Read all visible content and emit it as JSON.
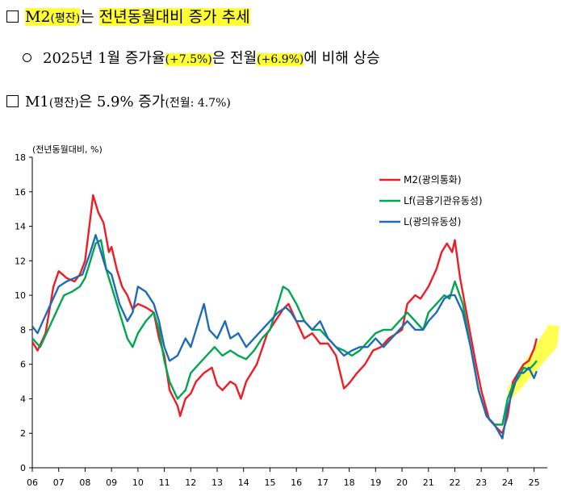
{
  "headline": {
    "title_part1": "M2",
    "title_part2": "(평잔)",
    "title_part3": "는 ",
    "title_part4": "전년동월대비 증가 추세"
  },
  "bullet": {
    "text1": "2025년 1월 증가율",
    "value1": "(+7.5%)",
    "text2": "은 전월",
    "value2": "(+6.9%)",
    "text3": "에 비해 상승"
  },
  "m1_line": {
    "text1": "M1",
    "text2": "(평잔)",
    "text3": "은 5.9% 증가",
    "text4": "(전월: 4.7%)"
  },
  "colors": {
    "m2": "#ee1c25",
    "lf": "#00a650",
    "l": "#1f6bb5",
    "highlight": "#ffff33"
  },
  "chart_data": {
    "type": "line",
    "ylabel": "(전년동월대비, %)",
    "ylim": [
      0,
      18
    ],
    "yticks": [
      "0",
      "2",
      "4",
      "6",
      "8",
      "10",
      "12",
      "14",
      "16",
      "18"
    ],
    "xlim": [
      2006.0,
      2025.5
    ],
    "xticks": [
      "06",
      "07",
      "08",
      "09",
      "10",
      "11",
      "12",
      "13",
      "14",
      "15",
      "16",
      "17",
      "18",
      "19",
      "20",
      "21",
      "22",
      "23",
      "24",
      "25"
    ],
    "legend_position": "top-right",
    "series": [
      {
        "name": "M2(광의통화)",
        "color": "#ee1c25",
        "points": [
          [
            2006.0,
            7.3
          ],
          [
            2006.2,
            6.8
          ],
          [
            2006.5,
            7.8
          ],
          [
            2006.8,
            10.5
          ],
          [
            2007.0,
            11.4
          ],
          [
            2007.3,
            11.0
          ],
          [
            2007.6,
            10.8
          ],
          [
            2007.8,
            11.2
          ],
          [
            2008.0,
            12.0
          ],
          [
            2008.2,
            14.5
          ],
          [
            2008.3,
            15.8
          ],
          [
            2008.5,
            14.8
          ],
          [
            2008.7,
            14.2
          ],
          [
            2008.9,
            12.5
          ],
          [
            2009.0,
            12.8
          ],
          [
            2009.2,
            11.5
          ],
          [
            2009.4,
            10.5
          ],
          [
            2009.6,
            10.0
          ],
          [
            2009.8,
            9.2
          ],
          [
            2010.0,
            9.5
          ],
          [
            2010.3,
            9.3
          ],
          [
            2010.6,
            9.0
          ],
          [
            2010.8,
            7.5
          ],
          [
            2011.0,
            6.5
          ],
          [
            2011.2,
            4.5
          ],
          [
            2011.5,
            3.6
          ],
          [
            2011.6,
            3.0
          ],
          [
            2011.8,
            4.0
          ],
          [
            2012.0,
            4.3
          ],
          [
            2012.2,
            5.0
          ],
          [
            2012.5,
            5.5
          ],
          [
            2012.8,
            5.8
          ],
          [
            2013.0,
            4.8
          ],
          [
            2013.2,
            4.5
          ],
          [
            2013.5,
            5.0
          ],
          [
            2013.7,
            4.8
          ],
          [
            2013.9,
            4.0
          ],
          [
            2014.1,
            5.0
          ],
          [
            2014.5,
            6.0
          ],
          [
            2014.9,
            7.8
          ],
          [
            2015.2,
            8.5
          ],
          [
            2015.5,
            9.2
          ],
          [
            2015.7,
            9.5
          ],
          [
            2016.0,
            8.5
          ],
          [
            2016.3,
            7.5
          ],
          [
            2016.6,
            7.8
          ],
          [
            2016.9,
            7.2
          ],
          [
            2017.2,
            7.2
          ],
          [
            2017.5,
            6.5
          ],
          [
            2017.8,
            4.6
          ],
          [
            2018.0,
            4.9
          ],
          [
            2018.3,
            5.5
          ],
          [
            2018.6,
            6.0
          ],
          [
            2018.9,
            6.8
          ],
          [
            2019.2,
            7.0
          ],
          [
            2019.5,
            7.5
          ],
          [
            2019.8,
            7.8
          ],
          [
            2020.0,
            8.0
          ],
          [
            2020.2,
            9.5
          ],
          [
            2020.5,
            10.0
          ],
          [
            2020.7,
            9.8
          ],
          [
            2021.0,
            10.5
          ],
          [
            2021.3,
            11.5
          ],
          [
            2021.5,
            12.5
          ],
          [
            2021.7,
            13.0
          ],
          [
            2021.9,
            12.5
          ],
          [
            2022.0,
            13.2
          ],
          [
            2022.2,
            11.0
          ],
          [
            2022.5,
            8.5
          ],
          [
            2022.8,
            6.0
          ],
          [
            2023.0,
            4.5
          ],
          [
            2023.3,
            2.8
          ],
          [
            2023.6,
            2.3
          ],
          [
            2023.8,
            2.0
          ],
          [
            2024.0,
            3.0
          ],
          [
            2024.2,
            5.0
          ],
          [
            2024.4,
            5.5
          ],
          [
            2024.6,
            6.0
          ],
          [
            2024.8,
            6.2
          ],
          [
            2025.0,
            6.9
          ],
          [
            2025.1,
            7.5
          ]
        ]
      },
      {
        "name": "Lf(금융기관유동성)",
        "color": "#00a650",
        "points": [
          [
            2006.0,
            7.5
          ],
          [
            2006.3,
            7.0
          ],
          [
            2006.6,
            8.0
          ],
          [
            2006.9,
            9.0
          ],
          [
            2007.2,
            10.0
          ],
          [
            2007.5,
            10.2
          ],
          [
            2007.8,
            10.5
          ],
          [
            2008.0,
            11.0
          ],
          [
            2008.2,
            12.0
          ],
          [
            2008.4,
            13.0
          ],
          [
            2008.6,
            13.2
          ],
          [
            2008.8,
            11.5
          ],
          [
            2009.0,
            10.5
          ],
          [
            2009.3,
            9.0
          ],
          [
            2009.6,
            7.5
          ],
          [
            2009.8,
            7.0
          ],
          [
            2010.0,
            7.8
          ],
          [
            2010.3,
            8.5
          ],
          [
            2010.6,
            9.0
          ],
          [
            2010.8,
            8.0
          ],
          [
            2011.0,
            6.2
          ],
          [
            2011.2,
            5.0
          ],
          [
            2011.5,
            4.0
          ],
          [
            2011.8,
            4.5
          ],
          [
            2012.0,
            5.5
          ],
          [
            2012.3,
            6.0
          ],
          [
            2012.6,
            6.5
          ],
          [
            2012.9,
            7.0
          ],
          [
            2013.2,
            6.5
          ],
          [
            2013.5,
            6.8
          ],
          [
            2013.8,
            6.5
          ],
          [
            2014.1,
            6.3
          ],
          [
            2014.4,
            6.8
          ],
          [
            2014.7,
            7.5
          ],
          [
            2015.0,
            8.0
          ],
          [
            2015.3,
            9.5
          ],
          [
            2015.5,
            10.5
          ],
          [
            2015.7,
            10.3
          ],
          [
            2016.0,
            9.5
          ],
          [
            2016.3,
            8.5
          ],
          [
            2016.6,
            8.0
          ],
          [
            2016.9,
            8.0
          ],
          [
            2017.2,
            7.5
          ],
          [
            2017.5,
            7.0
          ],
          [
            2017.8,
            6.8
          ],
          [
            2018.1,
            6.5
          ],
          [
            2018.4,
            6.8
          ],
          [
            2018.7,
            7.3
          ],
          [
            2019.0,
            7.8
          ],
          [
            2019.3,
            8.0
          ],
          [
            2019.6,
            8.0
          ],
          [
            2019.9,
            8.5
          ],
          [
            2020.2,
            9.0
          ],
          [
            2020.5,
            8.5
          ],
          [
            2020.8,
            8.0
          ],
          [
            2021.0,
            9.0
          ],
          [
            2021.3,
            9.5
          ],
          [
            2021.6,
            10.0
          ],
          [
            2021.8,
            9.8
          ],
          [
            2022.0,
            10.8
          ],
          [
            2022.3,
            9.5
          ],
          [
            2022.6,
            7.0
          ],
          [
            2022.9,
            4.5
          ],
          [
            2023.2,
            3.0
          ],
          [
            2023.5,
            2.5
          ],
          [
            2023.8,
            2.5
          ],
          [
            2024.0,
            4.0
          ],
          [
            2024.2,
            4.8
          ],
          [
            2024.4,
            5.2
          ],
          [
            2024.6,
            5.8
          ],
          [
            2024.8,
            5.7
          ],
          [
            2025.0,
            6.0
          ],
          [
            2025.1,
            6.2
          ]
        ]
      },
      {
        "name": "L(광의유동성)",
        "color": "#1f6bb5",
        "points": [
          [
            2006.0,
            8.2
          ],
          [
            2006.2,
            7.8
          ],
          [
            2006.4,
            8.5
          ],
          [
            2006.7,
            9.5
          ],
          [
            2007.0,
            10.5
          ],
          [
            2007.3,
            10.8
          ],
          [
            2007.6,
            11.0
          ],
          [
            2007.9,
            11.2
          ],
          [
            2008.2,
            12.5
          ],
          [
            2008.4,
            13.5
          ],
          [
            2008.6,
            12.5
          ],
          [
            2008.8,
            11.5
          ],
          [
            2009.0,
            11.2
          ],
          [
            2009.3,
            9.5
          ],
          [
            2009.6,
            8.5
          ],
          [
            2009.8,
            9.0
          ],
          [
            2010.0,
            10.5
          ],
          [
            2010.3,
            10.2
          ],
          [
            2010.6,
            9.5
          ],
          [
            2010.8,
            8.5
          ],
          [
            2011.0,
            7.0
          ],
          [
            2011.2,
            6.2
          ],
          [
            2011.5,
            6.5
          ],
          [
            2011.8,
            7.5
          ],
          [
            2012.0,
            7.0
          ],
          [
            2012.3,
            8.5
          ],
          [
            2012.5,
            9.5
          ],
          [
            2012.7,
            8.0
          ],
          [
            2013.0,
            7.5
          ],
          [
            2013.3,
            8.5
          ],
          [
            2013.5,
            7.5
          ],
          [
            2013.8,
            7.8
          ],
          [
            2014.1,
            7.0
          ],
          [
            2014.4,
            7.5
          ],
          [
            2014.7,
            8.0
          ],
          [
            2015.0,
            8.5
          ],
          [
            2015.3,
            9.0
          ],
          [
            2015.6,
            9.3
          ],
          [
            2015.8,
            9.0
          ],
          [
            2016.0,
            8.5
          ],
          [
            2016.3,
            8.5
          ],
          [
            2016.6,
            8.0
          ],
          [
            2016.9,
            8.5
          ],
          [
            2017.2,
            7.5
          ],
          [
            2017.5,
            7.0
          ],
          [
            2017.8,
            6.5
          ],
          [
            2018.1,
            6.8
          ],
          [
            2018.4,
            7.0
          ],
          [
            2018.7,
            7.0
          ],
          [
            2019.0,
            7.5
          ],
          [
            2019.3,
            7.0
          ],
          [
            2019.6,
            7.5
          ],
          [
            2019.9,
            8.0
          ],
          [
            2020.2,
            8.5
          ],
          [
            2020.5,
            8.0
          ],
          [
            2020.8,
            8.0
          ],
          [
            2021.0,
            8.5
          ],
          [
            2021.3,
            9.0
          ],
          [
            2021.6,
            9.8
          ],
          [
            2021.8,
            10.0
          ],
          [
            2022.0,
            10.0
          ],
          [
            2022.3,
            9.0
          ],
          [
            2022.6,
            7.0
          ],
          [
            2022.9,
            4.5
          ],
          [
            2023.2,
            3.0
          ],
          [
            2023.5,
            2.5
          ],
          [
            2023.8,
            1.7
          ],
          [
            2024.0,
            3.5
          ],
          [
            2024.2,
            4.5
          ],
          [
            2024.4,
            5.5
          ],
          [
            2024.6,
            5.5
          ],
          [
            2024.8,
            5.8
          ],
          [
            2025.0,
            5.2
          ],
          [
            2025.1,
            5.6
          ]
        ]
      }
    ]
  }
}
